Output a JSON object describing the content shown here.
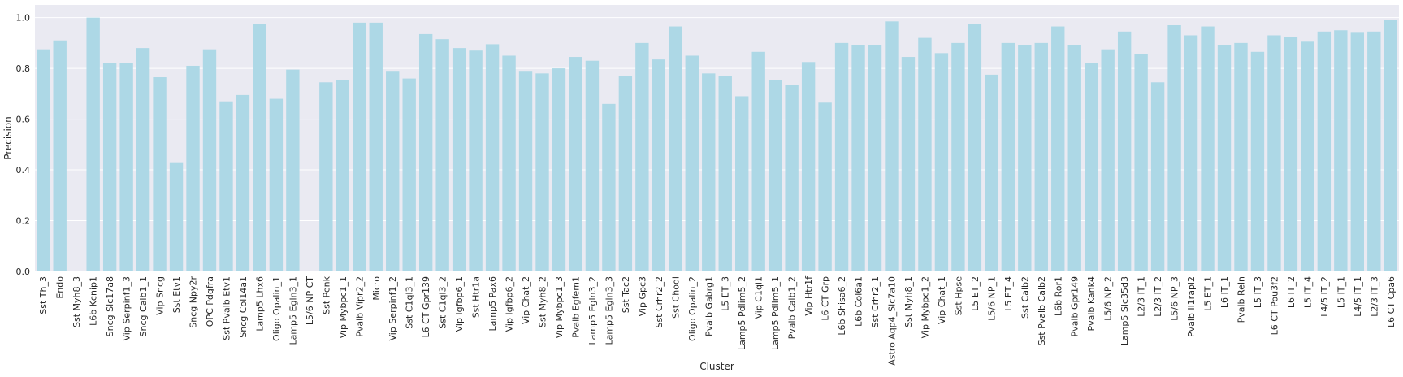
{
  "chart_data": {
    "type": "bar",
    "xlabel": "Cluster",
    "ylabel": "Precision",
    "ylim": [
      0,
      1.05
    ],
    "yticks": [
      0.0,
      0.2,
      0.4,
      0.6,
      0.8,
      1.0
    ],
    "ytick_labels": [
      "0.0",
      "0.2",
      "0.4",
      "0.6",
      "0.8",
      "1.0"
    ],
    "grid": true,
    "bar_color": "#add8e6",
    "background_color": "#eaeaf2",
    "categories": [
      "Sst Th_3",
      "Endo",
      "Sst Myh8_3",
      "L6b Kcnip1",
      "Sncg Slc17a8",
      "Vip Serpinf1_3",
      "Sncg Calb1_1",
      "Vip Sncg",
      "Sst Etv1",
      "Sncg Npy2r",
      "OPC Pdgfra",
      "Sst Pvalb Etv1",
      "Sncg Col14a1",
      "Lamp5 Lhx6",
      "Oligo Opalin_1",
      "Lamp5 Egln3_1",
      "L5/6 NP CT",
      "Sst Penk",
      "Vip Mybpc1_1",
      "Pvalb Vipr2_2",
      "Micro",
      "Vip Serpinf1_2",
      "Sst C1ql3_1",
      "L6 CT Gpr139",
      "Sst C1ql3_2",
      "Vip Igfbp6_1",
      "Sst Htr1a",
      "Lamp5 Pax6",
      "Vip Igfbp6_2",
      "Vip Chat_2",
      "Sst Myh8_2",
      "Vip Mybpc1_3",
      "Pvalb Egfem1",
      "Lamp5 Egln3_2",
      "Lamp5 Egln3_3",
      "Sst Tac2",
      "Vip Gpc3",
      "Sst Crhr2_2",
      "Sst Chodl",
      "Oligo Opalin_2",
      "Pvalb Gabrg1",
      "L5 ET_3",
      "Lamp5 Pdlim5_2",
      "Vip C1ql1",
      "Lamp5 Pdlim5_1",
      "Pvalb Calb1_2",
      "Vip Htr1f",
      "L6 CT Grp",
      "L6b Shisa6_2",
      "L6b Col6a1",
      "Sst Crhr2_1",
      "Astro Aqp4_Slc7a10",
      "Sst Myh8_1",
      "Vip Mybpc1_2",
      "Vip Chat_1",
      "Sst Hpse",
      "L5 ET_2",
      "L5/6 NP_1",
      "L5 ET_4",
      "Sst Calb2",
      "Sst Pvalb Calb2",
      "L6b Ror1",
      "Pvalb Gpr149",
      "Pvalb Kank4",
      "L5/6 NP_2",
      "Lamp5 Slc35d3",
      "L2/3 IT_1",
      "L2/3 IT_2",
      "L5/6 NP_3",
      "Pvalb Il1rapl2",
      "L5 ET_1",
      "L6 IT_1",
      "Pvalb Reln",
      "L5 IT_3",
      "L6 CT Pou3f2",
      "L6 IT_2",
      "L5 IT_4",
      "L4/5 IT_2",
      "L5 IT_1",
      "L4/5 IT_1",
      "L2/3 IT_3",
      "L6 CT Cpa6"
    ],
    "values": [
      0.875,
      0.91,
      0.0,
      1.0,
      0.82,
      0.82,
      0.88,
      0.765,
      0.43,
      0.81,
      0.875,
      0.67,
      0.695,
      0.975,
      0.68,
      0.795,
      0.0,
      0.745,
      0.755,
      0.98,
      0.98,
      0.79,
      0.76,
      0.935,
      0.915,
      0.88,
      0.87,
      0.895,
      0.85,
      0.79,
      0.78,
      0.8,
      0.845,
      0.83,
      0.66,
      0.77,
      0.9,
      0.835,
      0.965,
      0.85,
      0.78,
      0.77,
      0.69,
      0.865,
      0.755,
      0.735,
      0.825,
      0.665,
      0.9,
      0.89,
      0.89,
      0.985,
      0.845,
      0.92,
      0.86,
      0.9,
      0.975,
      0.775,
      0.9,
      0.89,
      0.9,
      0.965,
      0.89,
      0.82,
      0.875,
      0.945,
      0.855,
      0.745,
      0.97,
      0.93,
      0.965,
      0.89,
      0.9,
      0.865,
      0.93,
      0.925,
      0.905,
      0.945,
      0.95,
      0.94,
      0.945,
      0.99
    ]
  }
}
